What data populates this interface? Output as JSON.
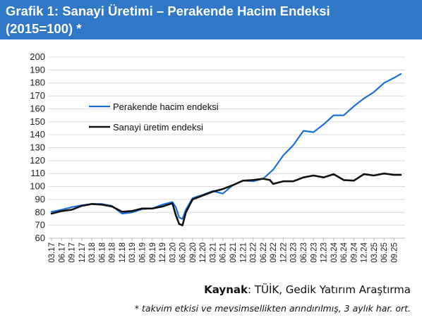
{
  "header": {
    "title_line1": "Grafik 1: Sanayi Üretimi – Perakende Hacim Endeksi",
    "title_line2": "(2015=100) *"
  },
  "footer": {
    "source_label": "Kaynak",
    "source_sep": ": ",
    "source_text": "TÜİK, Gedik Yatırım Araştırma",
    "note": "* takvim etkisi ve mevsimsellikten arındırılmış, 3 aylık har. ort."
  },
  "colors": {
    "title_bg": "#2f78c8",
    "retail": "#1a6fe0",
    "industrial": "#111111",
    "grid": "#d9d9d9"
  },
  "chart_data": {
    "type": "line",
    "title": "Grafik 1: Sanayi Üretimi – Perakende Hacim Endeksi (2015=100) *",
    "xlabel": "",
    "ylabel": "",
    "ylim": [
      60,
      200
    ],
    "ytick_step": 10,
    "grid": "horizontal",
    "legend_position": "upper-left",
    "x_start": "2017-03",
    "x_end": "2025-11",
    "x_tick_labels": [
      "03.17",
      "06.17",
      "09.17",
      "12.17",
      "03.18",
      "06.18",
      "09.18",
      "12.18",
      "03.19",
      "06.19",
      "09.19",
      "12.19",
      "03.20",
      "06.20",
      "09.20",
      "12.20",
      "03.21",
      "06.21",
      "09.21",
      "12.21",
      "03.22",
      "06.22",
      "09.22",
      "12.22",
      "03.23",
      "06.23",
      "09.23",
      "12.23",
      "03.24",
      "06.24",
      "09.24",
      "12.24",
      "03.25",
      "06.25",
      "09.25"
    ],
    "series": [
      {
        "name": "Perakende hacim endeksi",
        "color": "#1a6fe0",
        "points": [
          [
            "2017-03",
            80.5
          ],
          [
            "2017-06",
            82
          ],
          [
            "2017-09",
            84
          ],
          [
            "2017-12",
            85.5
          ],
          [
            "2018-03",
            86.5
          ],
          [
            "2018-06",
            86.5
          ],
          [
            "2018-09",
            85
          ],
          [
            "2018-12",
            79
          ],
          [
            "2019-03",
            80
          ],
          [
            "2019-06",
            82.5
          ],
          [
            "2019-09",
            83
          ],
          [
            "2019-12",
            86
          ],
          [
            "2020-03",
            88
          ],
          [
            "2020-04",
            84
          ],
          [
            "2020-05",
            76
          ],
          [
            "2020-06",
            75
          ],
          [
            "2020-07",
            82
          ],
          [
            "2020-09",
            91
          ],
          [
            "2020-12",
            93.5
          ],
          [
            "2021-03",
            96.5
          ],
          [
            "2021-06",
            94.5
          ],
          [
            "2021-09",
            101
          ],
          [
            "2021-12",
            104.5
          ],
          [
            "2022-03",
            104
          ],
          [
            "2022-06",
            106
          ],
          [
            "2022-09",
            113
          ],
          [
            "2022-12",
            124
          ],
          [
            "2023-03",
            132
          ],
          [
            "2023-06",
            143
          ],
          [
            "2023-09",
            142
          ],
          [
            "2023-12",
            148
          ],
          [
            "2024-03",
            155
          ],
          [
            "2024-06",
            155
          ],
          [
            "2024-09",
            162
          ],
          [
            "2024-12",
            168
          ],
          [
            "2025-03",
            173
          ],
          [
            "2025-06",
            180
          ],
          [
            "2025-09",
            184
          ],
          [
            "2025-11",
            187
          ]
        ]
      },
      {
        "name": "Sanayi üretim endeksi",
        "color": "#111111",
        "points": [
          [
            "2017-03",
            79
          ],
          [
            "2017-06",
            81
          ],
          [
            "2017-09",
            82
          ],
          [
            "2017-12",
            85
          ],
          [
            "2018-03",
            86.5
          ],
          [
            "2018-06",
            86
          ],
          [
            "2018-09",
            84.5
          ],
          [
            "2018-12",
            80.5
          ],
          [
            "2019-03",
            81
          ],
          [
            "2019-06",
            83
          ],
          [
            "2019-09",
            83
          ],
          [
            "2019-12",
            84.5
          ],
          [
            "2020-03",
            87
          ],
          [
            "2020-04",
            78
          ],
          [
            "2020-05",
            71
          ],
          [
            "2020-06",
            70
          ],
          [
            "2020-07",
            80
          ],
          [
            "2020-09",
            90
          ],
          [
            "2020-12",
            93
          ],
          [
            "2021-03",
            96
          ],
          [
            "2021-06",
            98
          ],
          [
            "2021-09",
            101
          ],
          [
            "2021-12",
            104.5
          ],
          [
            "2022-03",
            105
          ],
          [
            "2022-06",
            106
          ],
          [
            "2022-08",
            105
          ],
          [
            "2022-09",
            102
          ],
          [
            "2022-12",
            104
          ],
          [
            "2023-03",
            104
          ],
          [
            "2023-06",
            107
          ],
          [
            "2023-09",
            108.5
          ],
          [
            "2023-12",
            107
          ],
          [
            "2024-03",
            109.5
          ],
          [
            "2024-06",
            105
          ],
          [
            "2024-09",
            104.5
          ],
          [
            "2024-12",
            109.5
          ],
          [
            "2025-03",
            108.5
          ],
          [
            "2025-06",
            110
          ],
          [
            "2025-09",
            109
          ],
          [
            "2025-11",
            109
          ]
        ]
      }
    ]
  }
}
